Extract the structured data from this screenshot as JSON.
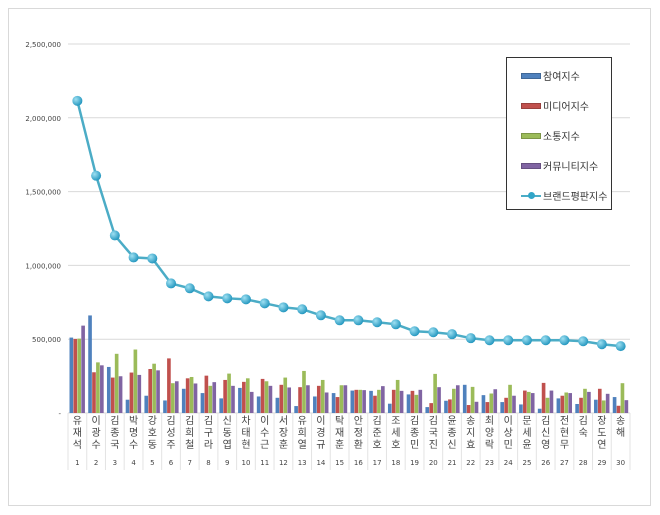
{
  "chart_data": {
    "type": "bar+line",
    "categories": [
      "유재석",
      "이광수",
      "김종국",
      "박명수",
      "강호동",
      "김성주",
      "김희철",
      "김구라",
      "신동엽",
      "차태현",
      "이수근",
      "서장훈",
      "유희열",
      "이경규",
      "탁재훈",
      "안정환",
      "김준호",
      "조세호",
      "김종민",
      "김국진",
      "윤종신",
      "송지효",
      "최양락",
      "이상민",
      "문세윤",
      "김신영",
      "전현무",
      "김숙",
      "장도연",
      "송해"
    ],
    "ranks": [
      "1",
      "2",
      "3",
      "4",
      "5",
      "6",
      "7",
      "8",
      "9",
      "10",
      "11",
      "12",
      "13",
      "14",
      "15",
      "16",
      "17",
      "18",
      "19",
      "20",
      "21",
      "22",
      "23",
      "24",
      "25",
      "26",
      "27",
      "28",
      "29",
      "30"
    ],
    "y_ticks": [
      "-",
      "500,000",
      "1,000,000",
      "1,500,000",
      "2,000,000",
      "2,500,000"
    ],
    "ylim": [
      0,
      2500000
    ],
    "grid": true,
    "legend_position": "top-right",
    "series": [
      {
        "name": "참여지수",
        "type": "bar",
        "color": "#4f81bd",
        "values": [
          511000,
          661000,
          312000,
          90000,
          117000,
          85000,
          164000,
          135000,
          99000,
          170000,
          112000,
          103000,
          47000,
          112000,
          135000,
          152000,
          150000,
          63000,
          126000,
          40000,
          83000,
          191000,
          121000,
          74000,
          58000,
          29000,
          99000,
          61000,
          90000,
          108000
        ]
      },
      {
        "name": "미디어지수",
        "type": "bar",
        "color": "#c0504d",
        "values": [
          502000,
          276000,
          240000,
          274000,
          298000,
          370000,
          235000,
          253000,
          224000,
          211000,
          231000,
          191000,
          175000,
          184000,
          108000,
          157000,
          117000,
          157000,
          150000,
          67000,
          92000,
          54000,
          74000,
          103000,
          152000,
          204000,
          117000,
          103000,
          164000,
          49000
        ]
      },
      {
        "name": "소통지수",
        "type": "bar",
        "color": "#9bbb59",
        "values": [
          504000,
          343000,
          401000,
          430000,
          334000,
          202000,
          244000,
          184000,
          267000,
          235000,
          215000,
          240000,
          285000,
          224000,
          188000,
          157000,
          157000,
          224000,
          123000,
          265000,
          164000,
          177000,
          132000,
          191000,
          143000,
          103000,
          139000,
          164000,
          85000,
          202000
        ]
      },
      {
        "name": "커뮤니티지수",
        "type": "bar",
        "color": "#8064a2",
        "values": [
          592000,
          323000,
          249000,
          258000,
          289000,
          215000,
          200000,
          209000,
          184000,
          143000,
          184000,
          173000,
          188000,
          139000,
          188000,
          155000,
          182000,
          150000,
          157000,
          175000,
          188000,
          76000,
          161000,
          117000,
          135000,
          152000,
          135000,
          143000,
          130000,
          87000
        ]
      },
      {
        "name": "브랜드평판지수",
        "type": "line",
        "color": "#4bacc6",
        "values": [
          2115000,
          1608000,
          1203000,
          1054000,
          1047000,
          878000,
          845000,
          790000,
          777000,
          770000,
          743000,
          716000,
          703000,
          662000,
          628000,
          628000,
          615000,
          601000,
          554000,
          547000,
          534000,
          507000,
          493000,
          493000,
          493000,
          493000,
          493000,
          486000,
          466000,
          453000
        ]
      }
    ]
  }
}
